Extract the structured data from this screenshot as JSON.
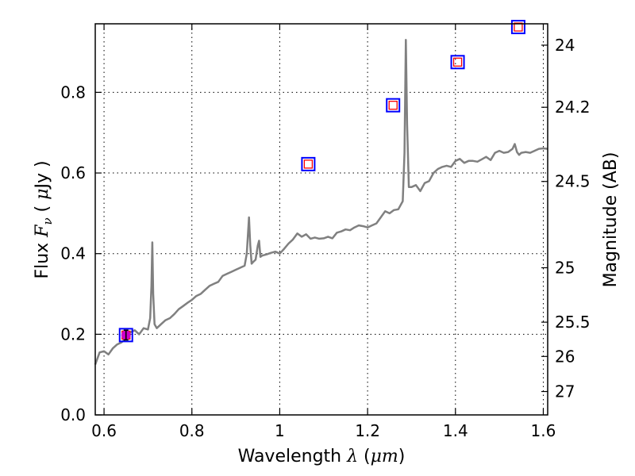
{
  "chart_data": {
    "type": "line",
    "xlabel": {
      "prefix": "Wavelength  ",
      "symbol": "λ",
      "open": " (",
      "unit": "μm",
      "close": ")"
    },
    "ylabel": {
      "prefix": "Flux  ",
      "symbol": "F",
      "subscript": "ν",
      "open": "  ( ",
      "unit": "μ",
      "unit_rest": "Jy )"
    },
    "y2label": "Magnitude (AB)",
    "xlim": [
      0.58,
      1.61
    ],
    "ylim": [
      0.0,
      0.97
    ],
    "grid": true,
    "grid_style": "dotted",
    "x_ticks": [
      {
        "value": 0.6,
        "label": "0.6"
      },
      {
        "value": 0.8,
        "label": "0.8"
      },
      {
        "value": 1.0,
        "label": "1"
      },
      {
        "value": 1.2,
        "label": "1.2"
      },
      {
        "value": 1.4,
        "label": "1.4"
      },
      {
        "value": 1.6,
        "label": "1.6"
      }
    ],
    "y_ticks": [
      {
        "value": 0.0,
        "label": "0.0"
      },
      {
        "value": 0.2,
        "label": "0.2"
      },
      {
        "value": 0.4,
        "label": "0.4"
      },
      {
        "value": 0.6,
        "label": "0.6"
      },
      {
        "value": 0.8,
        "label": "0.8"
      }
    ],
    "y2_ticks": [
      {
        "flux": 0.917,
        "label": "24"
      },
      {
        "flux": 0.763,
        "label": "24.2"
      },
      {
        "flux": 0.579,
        "label": "24.5"
      },
      {
        "flux": 0.365,
        "label": "25"
      },
      {
        "flux": 0.23,
        "label": "25.5"
      },
      {
        "flux": 0.145,
        "label": "26"
      },
      {
        "flux": 0.058,
        "label": "27"
      }
    ],
    "colors": {
      "spectrum": "#808080",
      "photometry_outer": "#0000ff",
      "photometry_inner": "#ff0000",
      "detection_marker": "#cc00cc",
      "grid": "#000000"
    },
    "series": [
      {
        "type": "line",
        "x": [
          0.58,
          0.59,
          0.6,
          0.61,
          0.62,
          0.63,
          0.64,
          0.65,
          0.66,
          0.67,
          0.68,
          0.69,
          0.7,
          0.705,
          0.708,
          0.71,
          0.712,
          0.715,
          0.72,
          0.73,
          0.74,
          0.75,
          0.76,
          0.77,
          0.78,
          0.79,
          0.8,
          0.81,
          0.82,
          0.83,
          0.84,
          0.85,
          0.86,
          0.87,
          0.88,
          0.89,
          0.9,
          0.91,
          0.92,
          0.925,
          0.93,
          0.933,
          0.936,
          0.94,
          0.945,
          0.95,
          0.953,
          0.956,
          0.96,
          0.97,
          0.98,
          0.99,
          1.0,
          1.01,
          1.02,
          1.03,
          1.04,
          1.05,
          1.06,
          1.07,
          1.08,
          1.09,
          1.1,
          1.11,
          1.12,
          1.13,
          1.14,
          1.15,
          1.16,
          1.17,
          1.18,
          1.19,
          1.2,
          1.21,
          1.22,
          1.23,
          1.24,
          1.25,
          1.26,
          1.27,
          1.28,
          1.284,
          1.287,
          1.29,
          1.294,
          1.3,
          1.31,
          1.32,
          1.33,
          1.34,
          1.35,
          1.36,
          1.37,
          1.38,
          1.39,
          1.4,
          1.41,
          1.42,
          1.43,
          1.44,
          1.45,
          1.46,
          1.47,
          1.48,
          1.49,
          1.5,
          1.51,
          1.52,
          1.53,
          1.535,
          1.54,
          1.545,
          1.55,
          1.56,
          1.57,
          1.58,
          1.59,
          1.6,
          1.61
        ],
        "y": [
          0.125,
          0.155,
          0.158,
          0.15,
          0.165,
          0.175,
          0.18,
          0.19,
          0.205,
          0.21,
          0.2,
          0.215,
          0.212,
          0.24,
          0.32,
          0.428,
          0.3,
          0.225,
          0.215,
          0.225,
          0.235,
          0.24,
          0.25,
          0.262,
          0.27,
          0.278,
          0.285,
          0.295,
          0.3,
          0.31,
          0.32,
          0.325,
          0.33,
          0.345,
          0.35,
          0.355,
          0.36,
          0.365,
          0.37,
          0.4,
          0.49,
          0.42,
          0.375,
          0.38,
          0.385,
          0.42,
          0.432,
          0.392,
          0.395,
          0.398,
          0.402,
          0.405,
          0.4,
          0.412,
          0.425,
          0.435,
          0.45,
          0.442,
          0.448,
          0.437,
          0.44,
          0.437,
          0.438,
          0.442,
          0.438,
          0.452,
          0.455,
          0.46,
          0.458,
          0.465,
          0.47,
          0.468,
          0.465,
          0.47,
          0.475,
          0.49,
          0.505,
          0.5,
          0.508,
          0.51,
          0.53,
          0.65,
          0.93,
          0.72,
          0.565,
          0.565,
          0.57,
          0.555,
          0.575,
          0.58,
          0.6,
          0.61,
          0.615,
          0.618,
          0.615,
          0.63,
          0.635,
          0.625,
          0.63,
          0.63,
          0.628,
          0.634,
          0.64,
          0.632,
          0.65,
          0.655,
          0.65,
          0.652,
          0.66,
          0.672,
          0.652,
          0.645,
          0.65,
          0.652,
          0.65,
          0.655,
          0.66,
          0.661,
          0.66
        ]
      },
      {
        "type": "scatter",
        "marker": "open-square",
        "points": [
          {
            "x": 0.65,
            "y": 0.198
          },
          {
            "x": 1.065,
            "y": 0.622
          },
          {
            "x": 1.258,
            "y": 0.768
          },
          {
            "x": 1.405,
            "y": 0.875
          },
          {
            "x": 1.543,
            "y": 0.962
          }
        ]
      },
      {
        "type": "scatter",
        "marker": "filled-circle-errorbar",
        "points": [
          {
            "x": 0.65,
            "y": 0.198,
            "yerr": 0.012
          }
        ]
      }
    ]
  }
}
